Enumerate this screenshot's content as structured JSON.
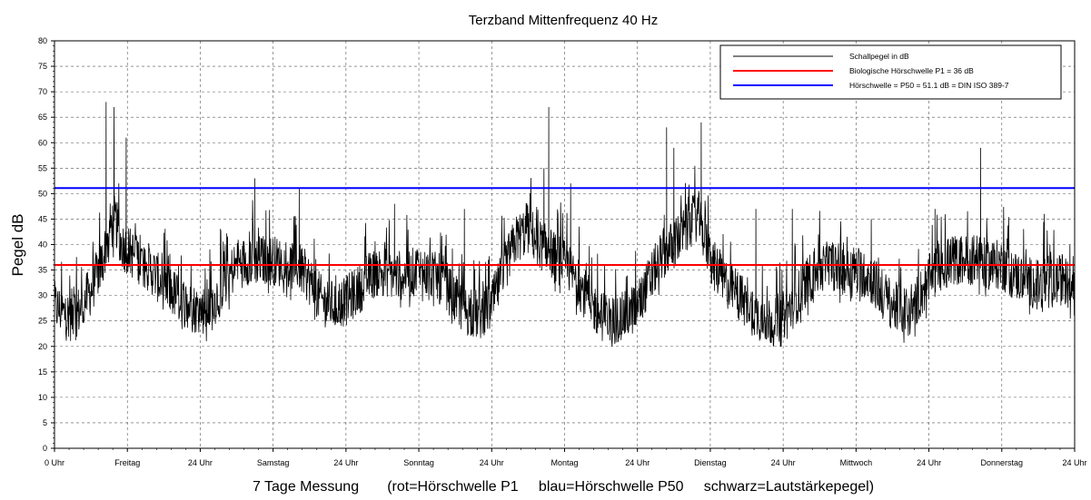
{
  "chart_data": {
    "type": "line",
    "title": "Terzband Mittenfrequenz 40 Hz",
    "xlabel": "7 Tage Messung       (rot=Hörschwelle P1     blau=Hörschwelle P50     schwarz=Lautstärkepegel)",
    "ylabel": "Pegel dB",
    "ylim": [
      0,
      80
    ],
    "y_ticks": [
      0,
      5,
      10,
      15,
      20,
      25,
      30,
      35,
      40,
      45,
      50,
      55,
      60,
      65,
      70,
      75,
      80
    ],
    "x_unit": "hours",
    "xlim": [
      0,
      168
    ],
    "x_ticks": [
      0,
      12,
      24,
      36,
      48,
      60,
      72,
      84,
      96,
      108,
      120,
      132,
      144,
      156,
      168
    ],
    "x_tick_labels": [
      "0 Uhr",
      "Freitag",
      "24 Uhr",
      "Samstag",
      "24 Uhr",
      "Sonntag",
      "24 Uhr",
      "Montag",
      "24 Uhr",
      "Dienstag",
      "24 Uhr",
      "Mittwoch",
      "24 Uhr",
      "Donnerstag",
      "24 Uhr"
    ],
    "grid": true,
    "legend_position": "top-right",
    "series": [
      {
        "name": "Schallpegel in dB",
        "color": "#000000",
        "x": [
          0,
          2,
          4,
          6,
          8,
          9,
          10,
          11,
          12,
          13,
          14,
          16,
          18,
          20,
          22,
          24,
          26,
          28,
          30,
          32,
          34,
          36,
          38,
          40,
          42,
          44,
          46,
          48,
          50,
          52,
          54,
          56,
          58,
          60,
          62,
          64,
          66,
          68,
          70,
          72,
          74,
          76,
          78,
          80,
          82,
          84,
          86,
          88,
          90,
          92,
          94,
          96,
          98,
          100,
          102,
          104,
          106,
          108,
          110,
          112,
          114,
          116,
          118,
          120,
          122,
          124,
          126,
          128,
          130,
          132,
          134,
          136,
          138,
          140,
          142,
          144,
          146,
          148,
          150,
          152,
          154,
          156,
          158,
          160,
          162,
          164,
          166,
          168
        ],
        "y": [
          28,
          26,
          27,
          31,
          37,
          43,
          45,
          40,
          39,
          38,
          37,
          35,
          32,
          30,
          28,
          27,
          28,
          33,
          36,
          37,
          37,
          37,
          36,
          36,
          33,
          29,
          28,
          29,
          31,
          34,
          35,
          34,
          34,
          35,
          34,
          33,
          29,
          27,
          26,
          28,
          35,
          41,
          43,
          40,
          38,
          36,
          33,
          29,
          26,
          25,
          26,
          28,
          33,
          38,
          40,
          43,
          46,
          37,
          33,
          31,
          28,
          26,
          25,
          26,
          29,
          33,
          35,
          36,
          35,
          35,
          34,
          31,
          28,
          27,
          29,
          33,
          36,
          37,
          37,
          37,
          36,
          36,
          34,
          33,
          32,
          33,
          33,
          32
        ],
        "peaks": [
          {
            "x": 8.5,
            "y": 68
          },
          {
            "x": 9.8,
            "y": 67
          },
          {
            "x": 11.8,
            "y": 61
          },
          {
            "x": 33,
            "y": 53
          },
          {
            "x": 40.3,
            "y": 51
          },
          {
            "x": 56,
            "y": 48
          },
          {
            "x": 67.5,
            "y": 47
          },
          {
            "x": 80.6,
            "y": 55
          },
          {
            "x": 81.4,
            "y": 67
          },
          {
            "x": 85,
            "y": 52
          },
          {
            "x": 100.8,
            "y": 63
          },
          {
            "x": 102,
            "y": 59
          },
          {
            "x": 106.5,
            "y": 64
          },
          {
            "x": 115.5,
            "y": 47
          },
          {
            "x": 121.5,
            "y": 47
          },
          {
            "x": 134.5,
            "y": 45
          },
          {
            "x": 145,
            "y": 47
          },
          {
            "x": 152.5,
            "y": 59
          },
          {
            "x": 163,
            "y": 46
          }
        ]
      },
      {
        "name": "Biologische Hörschwelle P1 = 36 dB",
        "color": "#ff0000",
        "constant": 36
      },
      {
        "name": "Hörschwelle = P50 = 51.1 dB = DIN ISO 389-7",
        "color": "#0000ff",
        "constant": 51.1
      }
    ]
  }
}
